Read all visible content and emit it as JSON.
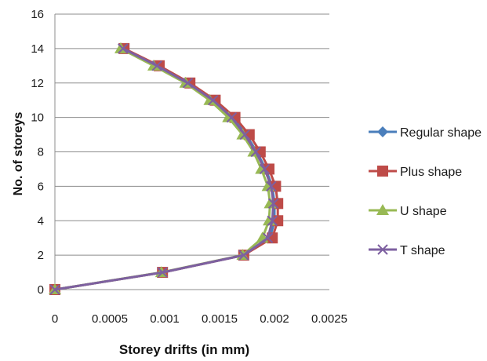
{
  "chart_data": {
    "type": "line",
    "title": "",
    "xlabel": "Storey drifts (in mm)",
    "ylabel": "No. of storeys",
    "xlim": [
      0,
      0.0025
    ],
    "ylim": [
      0,
      16
    ],
    "x_ticks": [
      "0",
      "0.0005",
      "0.001",
      "0.0015",
      "0.002",
      "0.0025"
    ],
    "y_ticks": [
      "0",
      "2",
      "4",
      "6",
      "8",
      "10",
      "12",
      "14",
      "16"
    ],
    "grid": "horizontal",
    "legend_position": "right",
    "series": [
      {
        "name": "Regular shape",
        "color": "#4a7ebb",
        "marker": "diamond",
        "points": [
          [
            0,
            0
          ],
          [
            0.00098,
            1
          ],
          [
            0.00172,
            2
          ],
          [
            0.00196,
            3
          ],
          [
            0.002,
            4
          ],
          [
            0.002,
            5
          ],
          [
            0.00198,
            6
          ],
          [
            0.00192,
            7
          ],
          [
            0.00184,
            8
          ],
          [
            0.00174,
            9
          ],
          [
            0.00162,
            10
          ],
          [
            0.00145,
            11
          ],
          [
            0.00122,
            12
          ],
          [
            0.00094,
            13
          ],
          [
            0.00062,
            14
          ]
        ]
      },
      {
        "name": "Plus shape",
        "color": "#be4b48",
        "marker": "square",
        "points": [
          [
            0,
            0
          ],
          [
            0.00098,
            1
          ],
          [
            0.00172,
            2
          ],
          [
            0.00198,
            3
          ],
          [
            0.00203,
            4
          ],
          [
            0.00203,
            5
          ],
          [
            0.00201,
            6
          ],
          [
            0.00195,
            7
          ],
          [
            0.00187,
            8
          ],
          [
            0.00177,
            9
          ],
          [
            0.00164,
            10
          ],
          [
            0.00146,
            11
          ],
          [
            0.00123,
            12
          ],
          [
            0.00095,
            13
          ],
          [
            0.00063,
            14
          ]
        ]
      },
      {
        "name": "U shape",
        "color": "#98b954",
        "marker": "triangle",
        "points": [
          [
            0,
            0
          ],
          [
            0.00097,
            1
          ],
          [
            0.00171,
            2
          ],
          [
            0.00189,
            3
          ],
          [
            0.00195,
            4
          ],
          [
            0.00196,
            5
          ],
          [
            0.00194,
            6
          ],
          [
            0.00188,
            7
          ],
          [
            0.00181,
            8
          ],
          [
            0.00171,
            9
          ],
          [
            0.00158,
            10
          ],
          [
            0.00141,
            11
          ],
          [
            0.00119,
            12
          ],
          [
            0.0009,
            13
          ],
          [
            0.0006,
            14
          ]
        ]
      },
      {
        "name": "T shape",
        "color": "#7d60a0",
        "marker": "x",
        "points": [
          [
            0,
            0
          ],
          [
            0.00098,
            1
          ],
          [
            0.00172,
            2
          ],
          [
            0.00194,
            3
          ],
          [
            0.00198,
            4
          ],
          [
            0.00199,
            5
          ],
          [
            0.00197,
            6
          ],
          [
            0.00191,
            7
          ],
          [
            0.00183,
            8
          ],
          [
            0.00173,
            9
          ],
          [
            0.00161,
            10
          ],
          [
            0.00144,
            11
          ],
          [
            0.00121,
            12
          ],
          [
            0.00093,
            13
          ],
          [
            0.00062,
            14
          ]
        ]
      }
    ]
  }
}
